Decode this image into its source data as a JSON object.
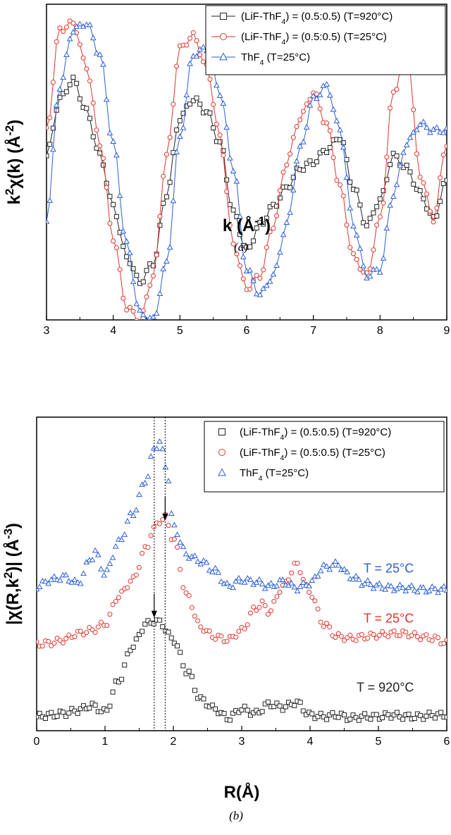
{
  "chart_data": [
    {
      "type": "line",
      "panel": "a",
      "caption": "(a)",
      "xlabel": "k (Å-1)",
      "xlabel_main": "k (Å",
      "xlabel_sup": "-1",
      "xlabel_end": ")",
      "ylabel": "k2χ(k) (Å-2)",
      "ylabel_parts": [
        "k",
        "2",
        "χ(k) (Å",
        "-2",
        ")"
      ],
      "xlim": [
        3,
        9
      ],
      "ylim": [
        -1.2,
        1.3
      ],
      "xticks": [
        "3",
        "4",
        "5",
        "6",
        "7",
        "8",
        "9"
      ],
      "yticks": [],
      "legend": [
        {
          "text": "(LiF-ThF4) = (0.5:0.5) (T=920°C)",
          "color": "#222222",
          "marker": "square"
        },
        {
          "text": "(LiF-ThF4) = (0.5:0.5) (T=25°C)",
          "color": "#e0342a",
          "marker": "circle"
        },
        {
          "text": "ThF4 (T=25°C)",
          "color": "#2a5fd6",
          "marker": "triangle"
        }
      ],
      "series": [
        {
          "name": "(LiF-ThF4) = (0.5:0.5) (T=920°C)",
          "color": "#222222",
          "marker": "square",
          "x": [
            3.0,
            3.2,
            3.4,
            3.6,
            3.8,
            4.0,
            4.2,
            4.4,
            4.6,
            4.8,
            5.0,
            5.2,
            5.4,
            5.6,
            5.8,
            6.0,
            6.2,
            6.4,
            6.6,
            6.8,
            7.0,
            7.2,
            7.4,
            7.6,
            7.8,
            8.0,
            8.2,
            8.4,
            8.6,
            8.8,
            9.0
          ],
          "y": [
            0.1,
            0.55,
            0.7,
            0.45,
            0.1,
            -0.3,
            -0.7,
            -0.9,
            -0.75,
            -0.2,
            0.4,
            0.55,
            0.45,
            0.2,
            -0.35,
            -0.65,
            -0.45,
            -0.3,
            -0.15,
            0.0,
            0.05,
            0.15,
            0.25,
            -0.15,
            -0.45,
            -0.25,
            0.1,
            0.0,
            -0.2,
            -0.4,
            -0.1
          ]
        },
        {
          "name": "(LiF-ThF4) = (0.5:0.5) (T=25°C)",
          "color": "#e0342a",
          "marker": "circle",
          "x": [
            3.0,
            3.2,
            3.4,
            3.6,
            3.8,
            4.0,
            4.2,
            4.4,
            4.6,
            4.8,
            5.0,
            5.2,
            5.4,
            5.6,
            5.8,
            6.0,
            6.2,
            6.4,
            6.6,
            6.8,
            7.0,
            7.2,
            7.4,
            7.6,
            7.8,
            8.0,
            8.2,
            8.4,
            8.6,
            8.8,
            9.0
          ],
          "y": [
            0.3,
            1.1,
            1.15,
            0.8,
            0.2,
            -0.55,
            -1.1,
            -1.2,
            -0.85,
            0.1,
            0.95,
            1.05,
            0.8,
            0.25,
            -0.6,
            -0.95,
            -0.85,
            -0.45,
            0.05,
            0.4,
            0.6,
            0.35,
            -0.15,
            -0.7,
            -0.85,
            -0.4,
            0.6,
            0.95,
            -0.05,
            -0.4,
            0.2
          ]
        },
        {
          "name": "ThF4 (T=25°C)",
          "color": "#2a5fd6",
          "marker": "triangle",
          "x": [
            3.0,
            3.2,
            3.4,
            3.6,
            3.8,
            4.0,
            4.2,
            4.4,
            4.6,
            4.8,
            5.0,
            5.2,
            5.4,
            5.6,
            5.8,
            6.0,
            6.2,
            6.4,
            6.6,
            6.8,
            7.0,
            7.2,
            7.4,
            7.6,
            7.8,
            8.0,
            8.2,
            8.4,
            8.6,
            8.8,
            9.0
          ],
          "y": [
            -0.4,
            0.65,
            1.1,
            1.15,
            0.9,
            0.2,
            -0.6,
            -1.15,
            -1.2,
            -0.75,
            0.25,
            0.9,
            0.95,
            0.6,
            0.0,
            -0.8,
            -1.0,
            -0.85,
            -0.45,
            0.15,
            0.55,
            0.65,
            0.3,
            -0.45,
            -0.85,
            -0.8,
            -0.2,
            0.2,
            0.35,
            0.3,
            0.3
          ]
        }
      ]
    },
    {
      "type": "scatter",
      "panel": "b",
      "caption": "(b)",
      "xlabel": "R(Å)",
      "ylabel": "|χ(R,k2)| (Å-3)",
      "ylabel_parts": [
        "|χ(R,k",
        "2",
        ")| (Å",
        "-3",
        ")"
      ],
      "xlim": [
        0,
        6
      ],
      "ylim": [
        0,
        10
      ],
      "xticks": [
        "0",
        "1",
        "2",
        "3",
        "4",
        "5",
        "6"
      ],
      "yticks": [],
      "vlines": [
        1.72,
        1.88
      ],
      "arrows": [
        {
          "x": 1.72,
          "y": 3.6
        },
        {
          "x": 1.88,
          "y": 6.7
        }
      ],
      "legend": [
        {
          "text": "(LiF-ThF4) = (0.5:0.5) (T=920°C)",
          "color": "#222222",
          "marker": "square"
        },
        {
          "text": "(LiF-ThF4) = (0.5:0.5) (T=25°C)",
          "color": "#e0342a",
          "marker": "circle"
        },
        {
          "text": "ThF4 (T=25°C)",
          "color": "#2a5fd6",
          "marker": "triangle"
        }
      ],
      "annotations": [
        {
          "text": "T = 25°C",
          "color": "#2a5fd6",
          "x": 5.15,
          "y": 5.05
        },
        {
          "text": "T = 25°C",
          "color": "#e0342a",
          "x": 5.15,
          "y": 3.45
        },
        {
          "text": "T = 920°C",
          "color": "#222222",
          "x": 5.1,
          "y": 1.25
        }
      ],
      "series": [
        {
          "name": "(LiF-ThF4) = (0.5:0.5) (T=920°C)",
          "color": "#222222",
          "marker": "square",
          "x": [
            0.0,
            0.2,
            0.4,
            0.6,
            0.8,
            1.0,
            1.2,
            1.4,
            1.6,
            1.72,
            1.8,
            2.0,
            2.2,
            2.4,
            2.6,
            2.8,
            3.0,
            3.2,
            3.4,
            3.6,
            3.8,
            4.0,
            4.2,
            4.4,
            4.6,
            4.8,
            5.0,
            5.2,
            5.4,
            5.6,
            5.8,
            6.0
          ],
          "y": [
            0.45,
            0.5,
            0.55,
            0.65,
            0.8,
            0.6,
            1.6,
            2.7,
            3.4,
            3.5,
            3.45,
            2.9,
            1.9,
            1.0,
            0.7,
            0.4,
            0.7,
            0.55,
            0.85,
            0.75,
            0.9,
            0.5,
            0.45,
            0.5,
            0.4,
            0.45,
            0.45,
            0.5,
            0.45,
            0.45,
            0.5,
            0.5
          ]
        },
        {
          "name": "(LiF-ThF4) = (0.5:0.5) (T=25°C)",
          "color": "#e0342a",
          "marker": "circle",
          "x": [
            0.0,
            0.2,
            0.4,
            0.6,
            0.8,
            1.0,
            1.2,
            1.4,
            1.6,
            1.7,
            1.8,
            1.88,
            2.0,
            2.2,
            2.4,
            2.6,
            2.8,
            3.0,
            3.2,
            3.3,
            3.4,
            3.6,
            3.8,
            4.0,
            4.2,
            4.4,
            4.6,
            4.8,
            5.0,
            5.2,
            5.4,
            5.6,
            5.8,
            6.0
          ],
          "y": [
            2.75,
            2.8,
            2.9,
            3.1,
            3.2,
            3.4,
            4.3,
            4.8,
            5.8,
            6.4,
            6.7,
            6.8,
            6.1,
            4.3,
            3.3,
            3.0,
            2.9,
            3.2,
            3.9,
            4.05,
            3.8,
            4.6,
            5.3,
            4.4,
            3.4,
            3.0,
            2.95,
            3.0,
            3.05,
            3.1,
            3.1,
            3.0,
            2.95,
            2.8
          ]
        },
        {
          "name": "ThF4 (T=25°C)",
          "color": "#2a5fd6",
          "marker": "triangle",
          "x": [
            0.0,
            0.2,
            0.4,
            0.6,
            0.8,
            0.85,
            1.0,
            1.2,
            1.4,
            1.6,
            1.72,
            1.8,
            1.9,
            2.0,
            2.2,
            2.4,
            2.6,
            2.8,
            3.0,
            3.2,
            3.4,
            3.6,
            3.8,
            4.0,
            4.2,
            4.4,
            4.6,
            4.8,
            5.0,
            5.2,
            5.4,
            5.6,
            5.8,
            6.0
          ],
          "y": [
            4.6,
            4.8,
            4.9,
            4.7,
            5.5,
            5.7,
            5.0,
            6.0,
            6.9,
            8.0,
            9.0,
            9.2,
            8.4,
            6.5,
            5.6,
            5.4,
            5.1,
            4.6,
            4.8,
            4.75,
            4.6,
            4.75,
            4.55,
            4.7,
            5.2,
            5.3,
            4.9,
            4.7,
            4.6,
            4.55,
            4.55,
            4.5,
            4.5,
            4.5
          ]
        }
      ]
    }
  ]
}
